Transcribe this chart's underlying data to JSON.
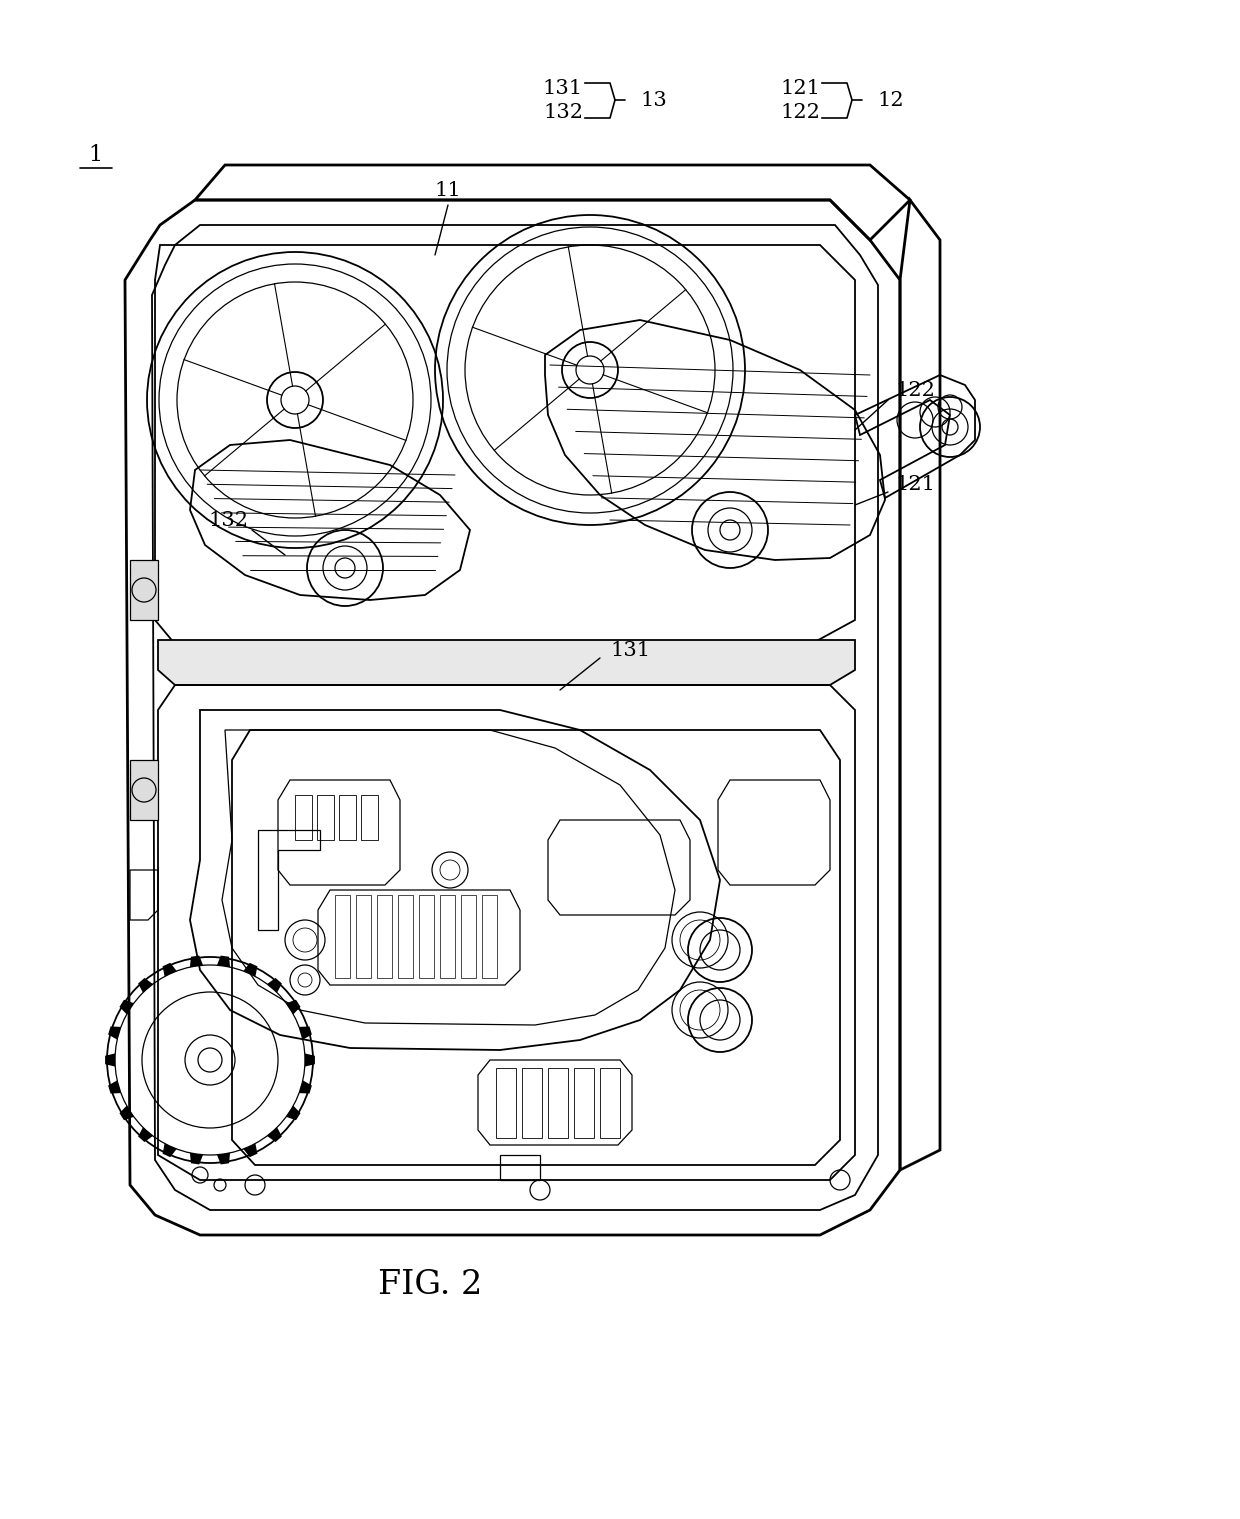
{
  "fig_label": "FIG. 2",
  "ref_1": "1",
  "ref_11": "11",
  "ref_12": "12",
  "ref_13": "13",
  "ref_121": "121",
  "ref_122": "122",
  "ref_131": "131",
  "ref_132": "132",
  "bg_color": "#ffffff",
  "line_color": "#000000",
  "font_size_ref": 15,
  "font_size_fig": 24
}
